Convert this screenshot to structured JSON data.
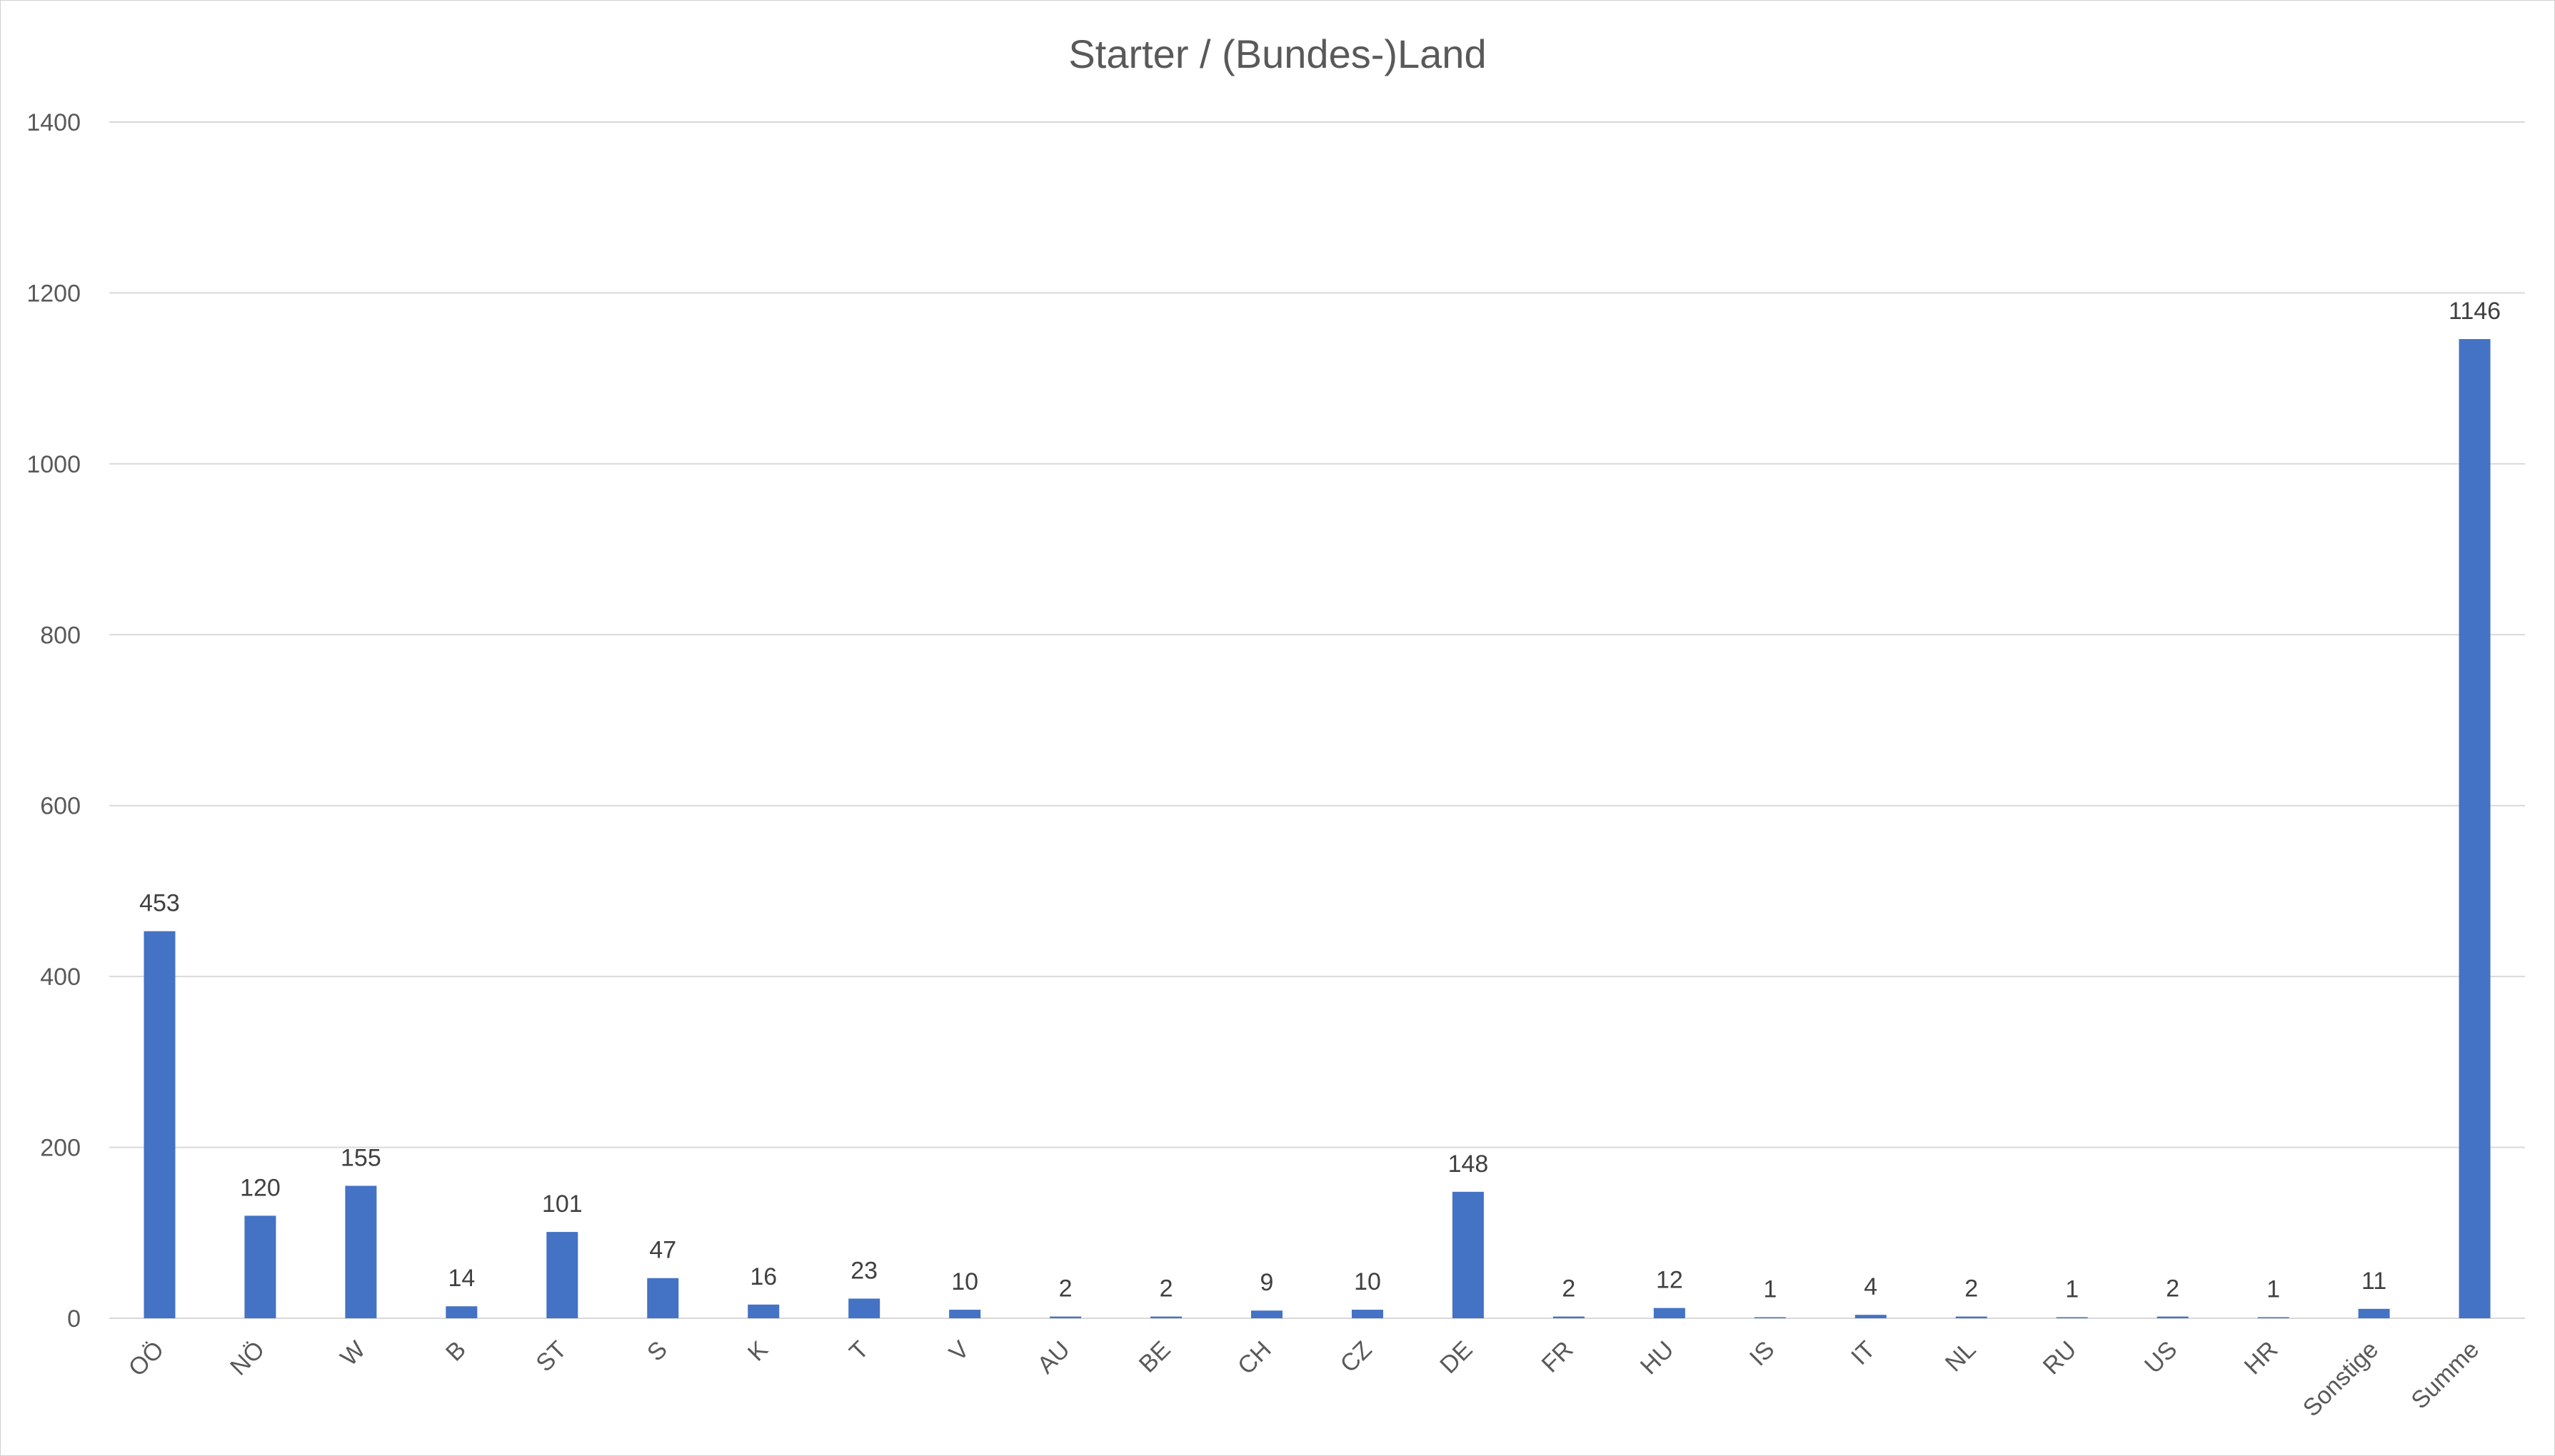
{
  "chart_data": {
    "type": "bar",
    "title": "Starter / (Bundes-)Land",
    "categories": [
      "OÖ",
      "NÖ",
      "W",
      "B",
      "ST",
      "S",
      "K",
      "T",
      "V",
      "AU",
      "BE",
      "CH",
      "CZ",
      "DE",
      "FR",
      "HU",
      "IS",
      "IT",
      "NL",
      "RU",
      "US",
      "HR",
      "Sonstige",
      "Summe"
    ],
    "values": [
      453,
      120,
      155,
      14,
      101,
      47,
      16,
      23,
      10,
      2,
      2,
      9,
      10,
      148,
      2,
      12,
      1,
      4,
      2,
      1,
      2,
      1,
      11,
      1146
    ],
    "data_labels": [
      "453",
      "120",
      "155",
      "14",
      "101",
      "47",
      "16",
      "23",
      "10",
      "2",
      "2",
      "9",
      "10",
      "148",
      "2",
      "12",
      "1",
      "4",
      "2",
      "1",
      "2",
      "1",
      "11",
      "1146"
    ],
    "xlabel": "",
    "ylabel": "",
    "ylim": [
      0,
      1400
    ],
    "yticks": [
      0,
      200,
      400,
      600,
      800,
      1000,
      1200,
      1400
    ],
    "ytick_labels": [
      "0",
      "200",
      "400",
      "600",
      "800",
      "1000",
      "1200",
      "1400"
    ],
    "grid": true,
    "legend": "none",
    "bar_color": "#4472C4",
    "grid_color": "#d9d9d9"
  }
}
